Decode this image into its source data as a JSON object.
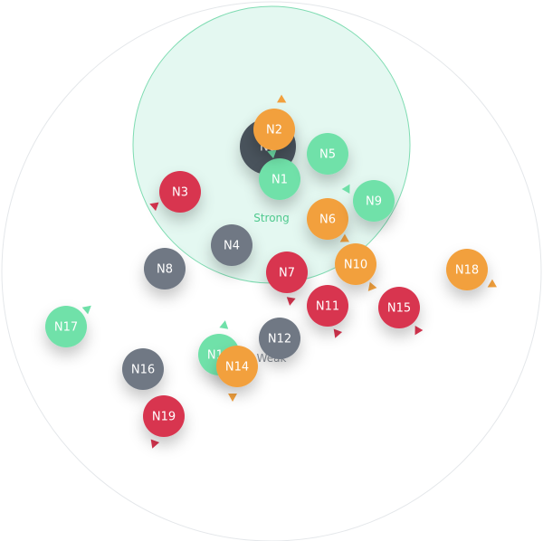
{
  "colors": {
    "green": "#6fe1a9",
    "orange": "#f2a03d",
    "red": "#d8344f",
    "gray": "#6f7884",
    "darkgray": "#4a525c",
    "zone_fill": "#dff7ee",
    "zone_stroke": "#7fdcb2",
    "outer_stroke": "#e4e7ea",
    "strong_label": "#4fc98e",
    "weak_label": "#8a9098"
  },
  "zones": {
    "strong": {
      "label": "Strong"
    },
    "weak": {
      "label": "Weak"
    }
  },
  "nodes": [
    {
      "id": "N0",
      "label": "N0",
      "color": "darkgray"
    },
    {
      "id": "N1",
      "label": "N1",
      "color": "green"
    },
    {
      "id": "N2",
      "label": "N2",
      "color": "orange"
    },
    {
      "id": "N3",
      "label": "N3",
      "color": "red"
    },
    {
      "id": "N4",
      "label": "N4",
      "color": "gray"
    },
    {
      "id": "N5",
      "label": "N5",
      "color": "green"
    },
    {
      "id": "N6",
      "label": "N6",
      "color": "orange"
    },
    {
      "id": "N7",
      "label": "N7",
      "color": "red"
    },
    {
      "id": "N8",
      "label": "N8",
      "color": "gray"
    },
    {
      "id": "N9",
      "label": "N9",
      "color": "green"
    },
    {
      "id": "N10",
      "label": "N10",
      "color": "orange"
    },
    {
      "id": "N11",
      "label": "N11",
      "color": "red"
    },
    {
      "id": "N12",
      "label": "N12",
      "color": "gray"
    },
    {
      "id": "N13",
      "label": "N13",
      "color": "green"
    },
    {
      "id": "N14",
      "label": "N14",
      "color": "orange"
    },
    {
      "id": "N15",
      "label": "N15",
      "color": "red"
    },
    {
      "id": "N16",
      "label": "N16",
      "color": "gray"
    },
    {
      "id": "N17",
      "label": "N17",
      "color": "green"
    },
    {
      "id": "N18",
      "label": "N18",
      "color": "orange"
    },
    {
      "id": "N19",
      "label": "N19",
      "color": "red"
    }
  ]
}
